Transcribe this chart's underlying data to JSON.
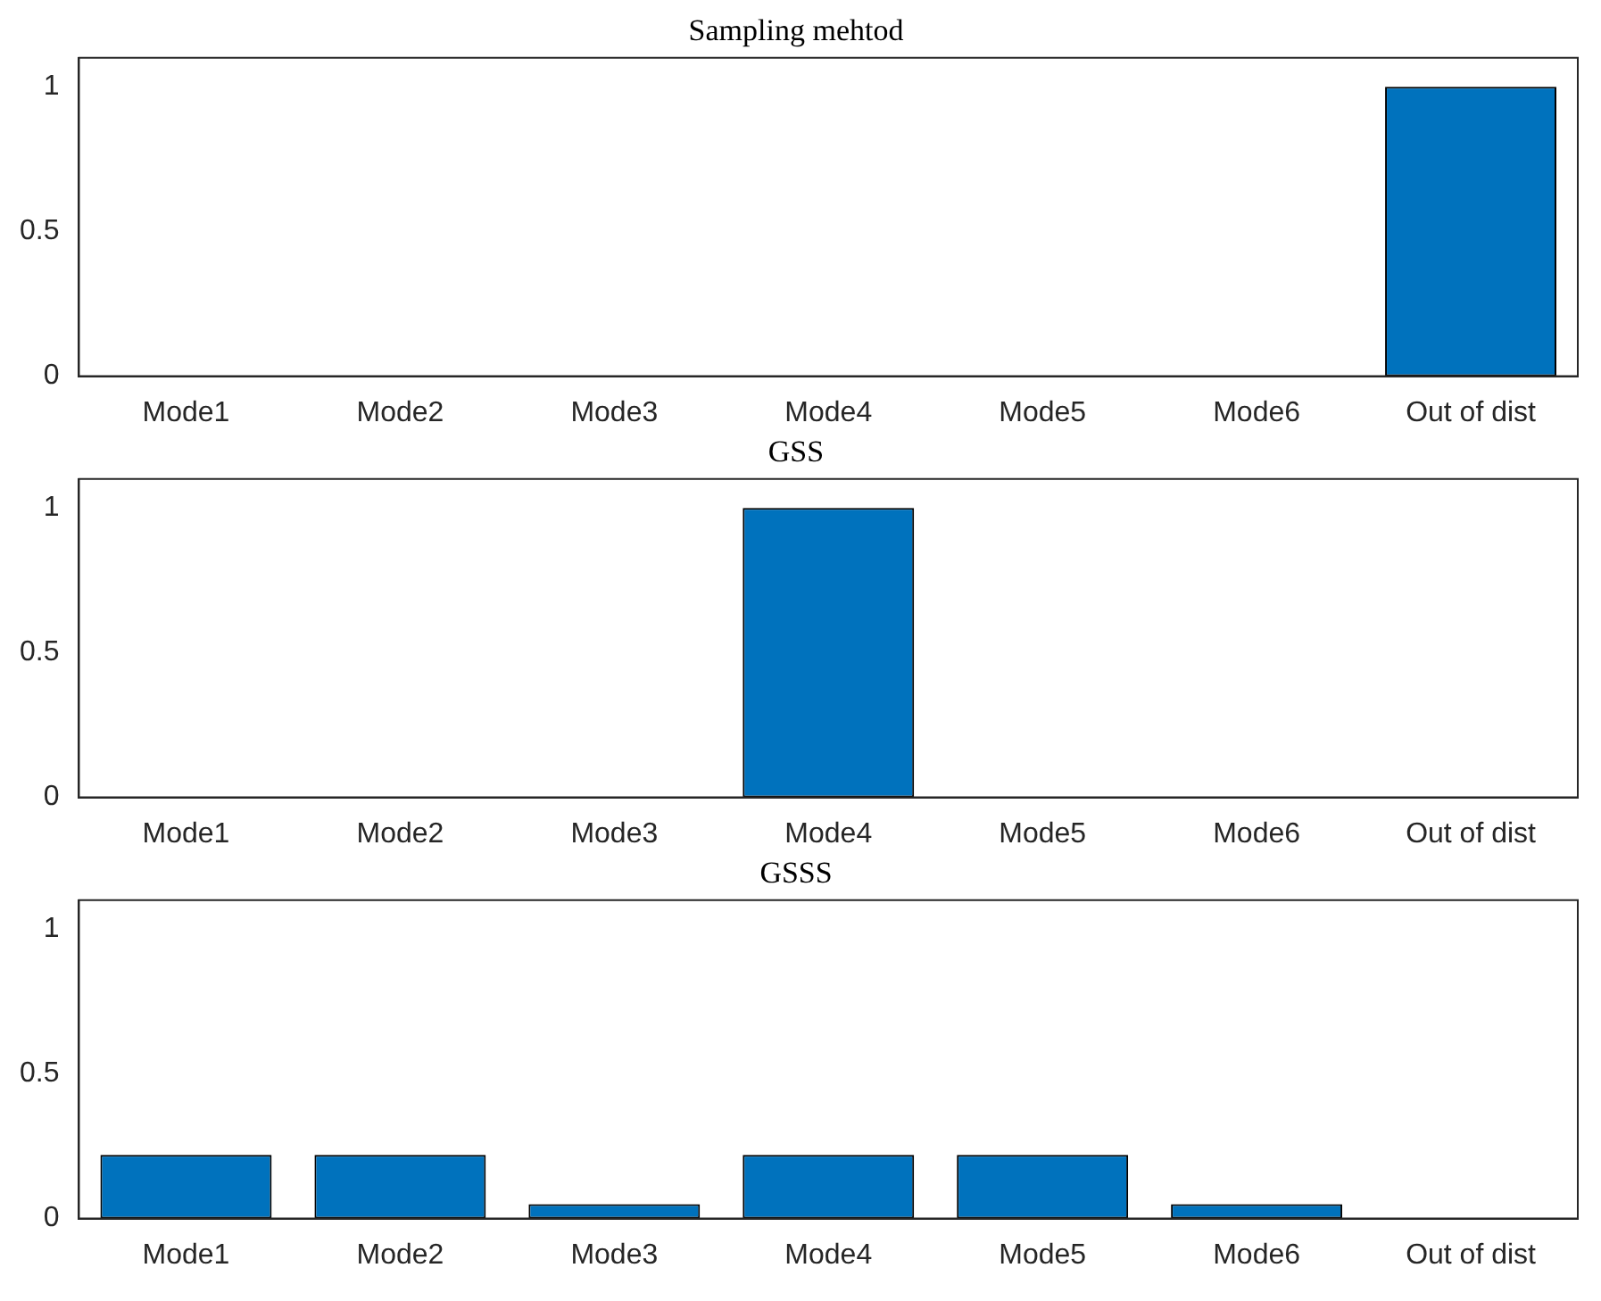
{
  "chart_data": [
    {
      "type": "bar",
      "title": "Sampling mehtod",
      "categories": [
        "Mode1",
        "Mode2",
        "Mode3",
        "Mode4",
        "Mode5",
        "Mode6",
        "Out of dist"
      ],
      "values": [
        0,
        0,
        0,
        0,
        0,
        0,
        1
      ],
      "color": "#0072bd",
      "ylim": [
        0,
        1.1
      ],
      "yticks": [
        0,
        0.5,
        1
      ],
      "grid": false
    },
    {
      "type": "bar",
      "title": "GSS",
      "categories": [
        "Mode1",
        "Mode2",
        "Mode3",
        "Mode4",
        "Mode5",
        "Mode6",
        "Out of dist"
      ],
      "values": [
        0,
        0,
        0,
        1,
        0,
        0,
        0
      ],
      "color": "#0072bd",
      "ylim": [
        0,
        1.1
      ],
      "yticks": [
        0,
        0.5,
        1
      ],
      "grid": false
    },
    {
      "type": "bar",
      "title": "GSSS",
      "categories": [
        "Mode1",
        "Mode2",
        "Mode3",
        "Mode4",
        "Mode5",
        "Mode6",
        "Out of dist"
      ],
      "values": [
        0.22,
        0.22,
        0.05,
        0.22,
        0.22,
        0.05,
        0
      ],
      "color": "#0072bd",
      "ylim": [
        0,
        1.1
      ],
      "yticks": [
        0,
        0.5,
        1
      ],
      "grid": false
    }
  ]
}
